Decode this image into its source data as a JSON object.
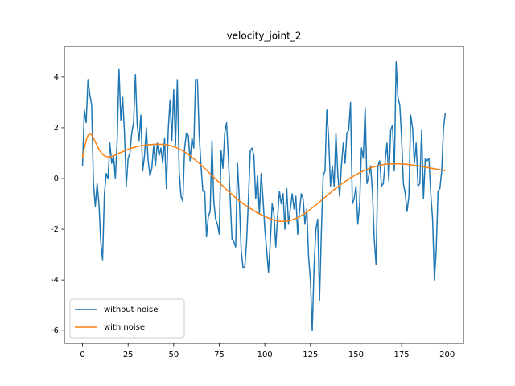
{
  "chart_data": {
    "type": "line",
    "title": "velocity_joint_2",
    "x": [
      0,
      1,
      2,
      3,
      4,
      5,
      6,
      7,
      8,
      9,
      10,
      11,
      12,
      13,
      14,
      15,
      16,
      17,
      18,
      19,
      20,
      21,
      22,
      23,
      24,
      25,
      26,
      27,
      28,
      29,
      30,
      31,
      32,
      33,
      34,
      35,
      36,
      37,
      38,
      39,
      40,
      41,
      42,
      43,
      44,
      45,
      46,
      47,
      48,
      49,
      50,
      51,
      52,
      53,
      54,
      55,
      56,
      57,
      58,
      59,
      60,
      61,
      62,
      63,
      64,
      65,
      66,
      67,
      68,
      69,
      70,
      71,
      72,
      73,
      74,
      75,
      76,
      77,
      78,
      79,
      80,
      81,
      82,
      83,
      84,
      85,
      86,
      87,
      88,
      89,
      90,
      91,
      92,
      93,
      94,
      95,
      96,
      97,
      98,
      99,
      100,
      101,
      102,
      103,
      104,
      105,
      106,
      107,
      108,
      109,
      110,
      111,
      112,
      113,
      114,
      115,
      116,
      117,
      118,
      119,
      120,
      121,
      122,
      123,
      124,
      125,
      126,
      127,
      128,
      129,
      130,
      131,
      132,
      133,
      134,
      135,
      136,
      137,
      138,
      139,
      140,
      141,
      142,
      143,
      144,
      145,
      146,
      147,
      148,
      149,
      150,
      151,
      152,
      153,
      154,
      155,
      156,
      157,
      158,
      159,
      160,
      161,
      162,
      163,
      164,
      165,
      166,
      167,
      168,
      169,
      170,
      171,
      172,
      173,
      174,
      175,
      176,
      177,
      178,
      179,
      180,
      181,
      182,
      183,
      184,
      185,
      186,
      187,
      188,
      189,
      190,
      191,
      192,
      193,
      194,
      195,
      196,
      197,
      198,
      199
    ],
    "series": [
      {
        "name": "without noise",
        "color": "#1f77b4",
        "values": [
          0.5,
          2.7,
          2.2,
          3.9,
          3.3,
          2.9,
          -0.2,
          -1.1,
          -0.2,
          -1.0,
          -2.5,
          -3.2,
          -0.6,
          0.2,
          0,
          1.4,
          0.6,
          0.9,
          0,
          1.5,
          4.3,
          2.3,
          3.2,
          1.8,
          -0.3,
          0.8,
          1.0,
          1.8,
          2.2,
          4.1,
          2.1,
          1.5,
          2.5,
          0.3,
          0.9,
          2.0,
          0.7,
          0.1,
          0.4,
          1.3,
          0.5,
          1.4,
          0.9,
          1.2,
          0.6,
          1.6,
          -0.4,
          1.9,
          3.1,
          1.5,
          3.5,
          1.3,
          3.9,
          0.3,
          -0.7,
          -0.9,
          1.2,
          1.8,
          1.7,
          0.7,
          1.6,
          1.2,
          3.9,
          3.9,
          1.7,
          0.5,
          -0.5,
          -0.5,
          -2.3,
          -1.5,
          -1.3,
          1.5,
          -0.9,
          -1.6,
          -1.8,
          -2.2,
          1.1,
          0.4,
          1.8,
          2.2,
          0.8,
          -0.8,
          -2.4,
          -2.5,
          -2.7,
          0.6,
          -0.8,
          -2.8,
          -3.5,
          -3.5,
          -2.5,
          -0.8,
          1.1,
          1.2,
          0.9,
          -0.8,
          0.1,
          -1.4,
          0.2,
          -0.8,
          -2.0,
          -2.8,
          -3.7,
          -2.5,
          -1.0,
          -1.4,
          -2.7,
          -1.5,
          -0.5,
          -1.0,
          -0.6,
          -2.0,
          -0.4,
          -1.8,
          -1.2,
          -0.6,
          -1.2,
          -0.7,
          -2.2,
          -1.3,
          -0.6,
          -0.8,
          -1.8,
          -1.2,
          -3.1,
          -4.0,
          -6.0,
          -3.5,
          -2.0,
          -1.6,
          -4.8,
          -2.1,
          0.1,
          0.3,
          2.7,
          1.6,
          -0.3,
          0.5,
          -0.3,
          1.8,
          0.2,
          -0.7,
          0.5,
          1.4,
          0.6,
          1.8,
          1.9,
          3.0,
          -1.0,
          -0.8,
          -0.3,
          -1.8,
          -1.0,
          1.2,
          0.8,
          2.8,
          -0.2,
          0.1,
          0.5,
          -0.5,
          -2.4,
          -3.4,
          0.5,
          0.7,
          -0.3,
          -0.2,
          0.7,
          1.4,
          -0.1,
          1.9,
          2.1,
          0.3,
          4.6,
          3.2,
          2.9,
          1.6,
          -0.2,
          -0.6,
          -1.3,
          -0.7,
          2.5,
          2.0,
          0.6,
          1.4,
          -0.3,
          -0.2,
          1.9,
          -0.8,
          0.8,
          0.7,
          0.8,
          -0.6,
          -1.6,
          -4.0,
          -2.8,
          -0.5,
          -0.4,
          0.3,
          2.0,
          2.6
        ]
      },
      {
        "name": "with noise",
        "color": "#ff7f0e",
        "values": [
          0.8,
          1.2,
          1.5,
          1.7,
          1.75,
          1.72,
          1.6,
          1.45,
          1.3,
          1.15,
          1.05,
          0.95,
          0.9,
          0.87,
          0.85,
          0.85,
          0.87,
          0.9,
          0.93,
          0.96,
          1.0,
          1.03,
          1.06,
          1.09,
          1.12,
          1.15,
          1.17,
          1.2,
          1.22,
          1.24,
          1.26,
          1.28,
          1.29,
          1.3,
          1.31,
          1.32,
          1.33,
          1.34,
          1.34,
          1.35,
          1.35,
          1.35,
          1.35,
          1.35,
          1.35,
          1.34,
          1.33,
          1.32,
          1.3,
          1.28,
          1.26,
          1.23,
          1.2,
          1.17,
          1.13,
          1.09,
          1.05,
          1.0,
          0.95,
          0.9,
          0.84,
          0.78,
          0.72,
          0.66,
          0.6,
          0.53,
          0.47,
          0.4,
          0.33,
          0.26,
          0.19,
          0.12,
          0.05,
          -0.02,
          -0.09,
          -0.16,
          -0.23,
          -0.3,
          -0.37,
          -0.44,
          -0.5,
          -0.57,
          -0.63,
          -0.7,
          -0.76,
          -0.82,
          -0.88,
          -0.93,
          -0.99,
          -1.04,
          -1.09,
          -1.14,
          -1.18,
          -1.23,
          -1.27,
          -1.31,
          -1.35,
          -1.39,
          -1.43,
          -1.46,
          -1.5,
          -1.53,
          -1.56,
          -1.59,
          -1.61,
          -1.64,
          -1.66,
          -1.67,
          -1.68,
          -1.69,
          -1.69,
          -1.69,
          -1.68,
          -1.67,
          -1.65,
          -1.63,
          -1.6,
          -1.57,
          -1.54,
          -1.5,
          -1.46,
          -1.42,
          -1.37,
          -1.32,
          -1.27,
          -1.22,
          -1.16,
          -1.1,
          -1.04,
          -0.98,
          -0.92,
          -0.86,
          -0.8,
          -0.74,
          -0.68,
          -0.62,
          -0.56,
          -0.5,
          -0.44,
          -0.38,
          -0.33,
          -0.27,
          -0.22,
          -0.17,
          -0.12,
          -0.07,
          -0.02,
          0.03,
          0.07,
          0.11,
          0.15,
          0.19,
          0.23,
          0.26,
          0.3,
          0.33,
          0.36,
          0.39,
          0.42,
          0.44,
          0.46,
          0.48,
          0.5,
          0.52,
          0.53,
          0.55,
          0.56,
          0.57,
          0.57,
          0.58,
          0.58,
          0.58,
          0.58,
          0.58,
          0.58,
          0.57,
          0.57,
          0.56,
          0.56,
          0.55,
          0.54,
          0.53,
          0.52,
          0.51,
          0.5,
          0.49,
          0.48,
          0.46,
          0.45,
          0.44,
          0.42,
          0.41,
          0.4,
          0.38,
          0.37,
          0.36,
          0.35,
          0.33,
          0.32,
          0.3
        ]
      }
    ],
    "xlim": [
      -9.95,
      208.95
    ],
    "ylim": [
      -6.5,
      5.2
    ],
    "xticks": [
      0,
      25,
      50,
      75,
      100,
      125,
      150,
      175,
      200
    ],
    "yticks": [
      -6,
      -4,
      -2,
      0,
      2,
      4
    ],
    "legend": "lower left"
  }
}
